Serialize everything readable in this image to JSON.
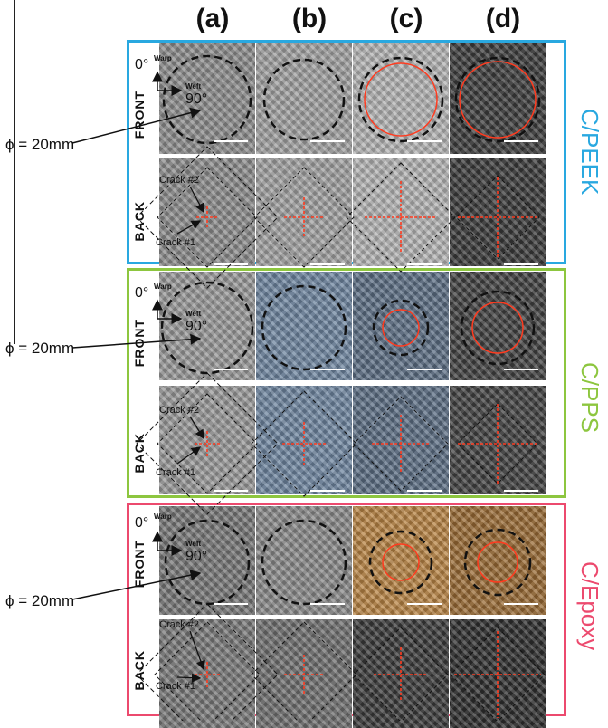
{
  "columns": [
    "(a)",
    "(b)",
    "(c)",
    "(d)"
  ],
  "materials": [
    {
      "name": "C/PEEK",
      "color": "#29a8e0",
      "fabric": "peek"
    },
    {
      "name": "C/PPS",
      "color": "#8dc63f",
      "fabric": "pps"
    },
    {
      "name": "C/Epoxy",
      "color": "#ec4a6e",
      "fabric": "epoxy"
    }
  ],
  "row_labels": {
    "front": "FRONT",
    "back": "BACK"
  },
  "diameter_label": "ϕ = 20mm",
  "orientation": {
    "zero": "0°",
    "ninety": "90°",
    "warp": "Warp",
    "weft": "Weft"
  },
  "cracks": {
    "crack2": "Crack #2",
    "crack1": "Crack #1"
  },
  "scale_bar": "10 mm",
  "colors": {
    "crack_line": "#ff3b1f",
    "circle": "#111111"
  }
}
